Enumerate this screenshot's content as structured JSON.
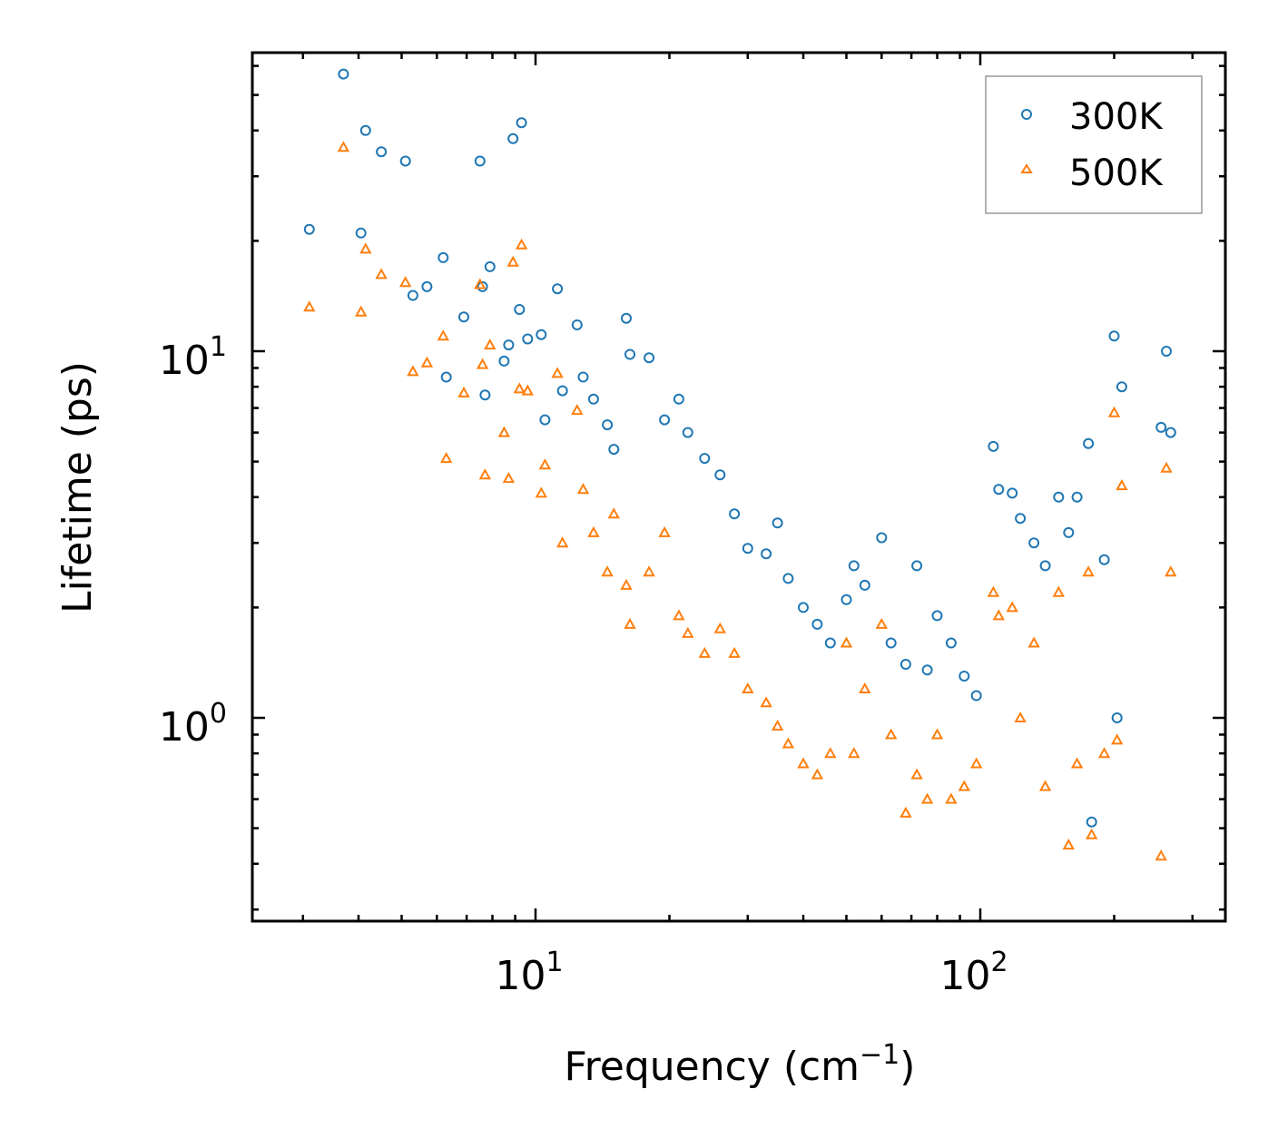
{
  "chart_data": {
    "type": "scatter",
    "title": "",
    "xlabel": "Frequency (cm",
    "xlabel_sup": "−1",
    "xlabel_end": ")",
    "ylabel": "Lifetime (ps)",
    "xscale": "log",
    "yscale": "log",
    "xlim": [
      2.5,
      370
    ],
    "ylim": [
      0.3,
      65
    ],
    "x_tick_labels": [
      {
        "base": "10",
        "exp": "1",
        "value": 10
      },
      {
        "base": "10",
        "exp": "2",
        "value": 100
      }
    ],
    "y_tick_labels": [
      {
        "base": "10",
        "exp": "0",
        "value": 1
      },
      {
        "base": "10",
        "exp": "1",
        "value": 10
      }
    ],
    "legend_position": "top-right",
    "series": [
      {
        "name": "300K",
        "color": "#1f77b4",
        "marker": "circle",
        "points": [
          [
            3.1,
            21.5
          ],
          [
            3.7,
            57.0
          ],
          [
            4.05,
            21.0
          ],
          [
            4.15,
            40.0
          ],
          [
            4.5,
            35.0
          ],
          [
            5.1,
            33.0
          ],
          [
            5.3,
            14.2
          ],
          [
            5.7,
            15.0
          ],
          [
            6.2,
            18.0
          ],
          [
            6.3,
            8.5
          ],
          [
            6.9,
            12.4
          ],
          [
            7.5,
            33.0
          ],
          [
            7.6,
            15.0
          ],
          [
            7.7,
            7.6
          ],
          [
            7.9,
            17.0
          ],
          [
            8.5,
            9.4
          ],
          [
            8.7,
            10.4
          ],
          [
            8.9,
            38.0
          ],
          [
            9.2,
            13.0
          ],
          [
            9.3,
            42.0
          ],
          [
            9.6,
            10.8
          ],
          [
            10.3,
            11.1
          ],
          [
            10.5,
            6.5
          ],
          [
            11.2,
            14.8
          ],
          [
            11.5,
            7.8
          ],
          [
            12.4,
            11.8
          ],
          [
            12.8,
            8.5
          ],
          [
            13.5,
            7.4
          ],
          [
            14.5,
            6.3
          ],
          [
            15.0,
            5.4
          ],
          [
            16.0,
            12.3
          ],
          [
            16.3,
            9.8
          ],
          [
            18.0,
            9.6
          ],
          [
            19.5,
            6.5
          ],
          [
            21.0,
            7.4
          ],
          [
            22.0,
            6.0
          ],
          [
            24.0,
            5.1
          ],
          [
            26.0,
            4.6
          ],
          [
            28.0,
            3.6
          ],
          [
            30.0,
            2.9
          ],
          [
            33.0,
            2.8
          ],
          [
            35.0,
            3.4
          ],
          [
            37.0,
            2.4
          ],
          [
            40.0,
            2.0
          ],
          [
            43.0,
            1.8
          ],
          [
            46.0,
            1.6
          ],
          [
            50.0,
            2.1
          ],
          [
            52.0,
            2.6
          ],
          [
            55.0,
            2.3
          ],
          [
            60.0,
            3.1
          ],
          [
            63.0,
            1.6
          ],
          [
            68.0,
            1.4
          ],
          [
            72.0,
            2.6
          ],
          [
            76.0,
            1.35
          ],
          [
            80.0,
            1.9
          ],
          [
            86.0,
            1.6
          ],
          [
            92.0,
            1.3
          ],
          [
            98.0,
            1.15
          ],
          [
            107.0,
            5.5
          ],
          [
            110.0,
            4.2
          ],
          [
            118.0,
            4.1
          ],
          [
            123.0,
            3.5
          ],
          [
            132.0,
            3.0
          ],
          [
            140.0,
            2.6
          ],
          [
            150.0,
            4.0
          ],
          [
            158.0,
            3.2
          ],
          [
            165.0,
            4.0
          ],
          [
            175.0,
            5.6
          ],
          [
            178.0,
            0.52
          ],
          [
            190.0,
            2.7
          ],
          [
            200.0,
            11.0
          ],
          [
            203.0,
            1.0
          ],
          [
            208.0,
            8.0
          ],
          [
            255.0,
            6.2
          ],
          [
            262.0,
            10.0
          ],
          [
            268.0,
            6.0
          ]
        ]
      },
      {
        "name": "500K",
        "color": "#ff7f0e",
        "marker": "triangle",
        "points": [
          [
            3.1,
            13.2
          ],
          [
            3.7,
            36.0
          ],
          [
            4.05,
            12.8
          ],
          [
            4.15,
            19.0
          ],
          [
            4.5,
            16.2
          ],
          [
            5.1,
            15.4
          ],
          [
            5.3,
            8.8
          ],
          [
            5.7,
            9.3
          ],
          [
            6.2,
            11.0
          ],
          [
            6.3,
            5.1
          ],
          [
            6.9,
            7.7
          ],
          [
            7.5,
            15.2
          ],
          [
            7.6,
            9.2
          ],
          [
            7.7,
            4.6
          ],
          [
            7.9,
            10.4
          ],
          [
            8.5,
            6.0
          ],
          [
            8.7,
            4.5
          ],
          [
            8.9,
            17.5
          ],
          [
            9.2,
            7.9
          ],
          [
            9.3,
            19.5
          ],
          [
            9.6,
            7.8
          ],
          [
            10.3,
            4.1
          ],
          [
            10.5,
            4.9
          ],
          [
            11.2,
            8.7
          ],
          [
            11.5,
            3.0
          ],
          [
            12.4,
            6.9
          ],
          [
            12.8,
            4.2
          ],
          [
            13.5,
            3.2
          ],
          [
            14.5,
            2.5
          ],
          [
            15.0,
            3.6
          ],
          [
            16.0,
            2.3
          ],
          [
            16.3,
            1.8
          ],
          [
            18.0,
            2.5
          ],
          [
            19.5,
            3.2
          ],
          [
            21.0,
            1.9
          ],
          [
            22.0,
            1.7
          ],
          [
            24.0,
            1.5
          ],
          [
            26.0,
            1.75
          ],
          [
            28.0,
            1.5
          ],
          [
            30.0,
            1.2
          ],
          [
            33.0,
            1.1
          ],
          [
            35.0,
            0.95
          ],
          [
            37.0,
            0.85
          ],
          [
            40.0,
            0.75
          ],
          [
            43.0,
            0.7
          ],
          [
            46.0,
            0.8
          ],
          [
            50.0,
            1.6
          ],
          [
            52.0,
            0.8
          ],
          [
            55.0,
            1.2
          ],
          [
            60.0,
            1.8
          ],
          [
            63.0,
            0.9
          ],
          [
            68.0,
            0.55
          ],
          [
            72.0,
            0.7
          ],
          [
            76.0,
            0.6
          ],
          [
            80.0,
            0.9
          ],
          [
            86.0,
            0.6
          ],
          [
            92.0,
            0.65
          ],
          [
            98.0,
            0.75
          ],
          [
            107.0,
            2.2
          ],
          [
            110.0,
            1.9
          ],
          [
            118.0,
            2.0
          ],
          [
            123.0,
            1.0
          ],
          [
            132.0,
            1.6
          ],
          [
            140.0,
            0.65
          ],
          [
            150.0,
            2.2
          ],
          [
            158.0,
            0.45
          ],
          [
            165.0,
            0.75
          ],
          [
            175.0,
            2.5
          ],
          [
            178.0,
            0.48
          ],
          [
            190.0,
            0.8
          ],
          [
            200.0,
            6.8
          ],
          [
            203.0,
            0.87
          ],
          [
            208.0,
            4.3
          ],
          [
            255.0,
            0.42
          ],
          [
            262.0,
            4.8
          ],
          [
            268.0,
            2.5
          ]
        ]
      }
    ]
  }
}
